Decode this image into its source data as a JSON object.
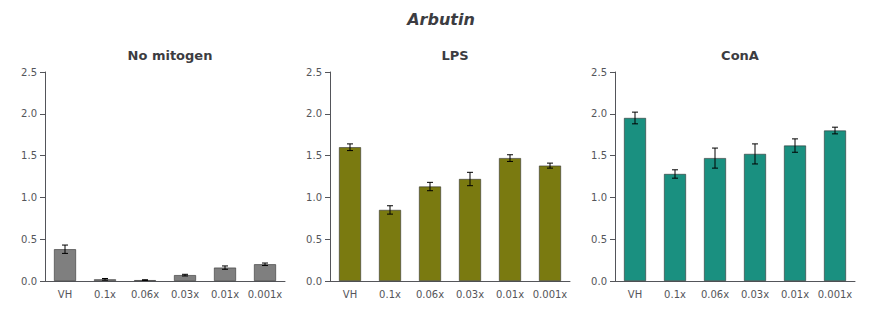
{
  "title": "Arbutin",
  "chart_data": [
    {
      "type": "bar",
      "title": "No mitogen",
      "color": "#7F7F7F",
      "categories": [
        "VH",
        "0.1x",
        "0.06x",
        "0.03x",
        "0.01x",
        "0.001x"
      ],
      "values": [
        0.38,
        0.02,
        0.01,
        0.07,
        0.16,
        0.2
      ],
      "errors": [
        0.05,
        0.01,
        0.005,
        0.01,
        0.02,
        0.015
      ],
      "ylim": [
        0,
        2.5
      ],
      "yticks": [
        {
          "value": 0.0,
          "label": "0.0"
        },
        0.5,
        {
          "value": 1.0,
          "label": "1.0"
        },
        1.5,
        {
          "value": 2.0,
          "label": "2.0"
        },
        2.5
      ],
      "grid": false
    },
    {
      "type": "bar",
      "title": "LPS",
      "color": "#7A7A10",
      "categories": [
        "VH",
        "0.1x",
        "0.06x",
        "0.03x",
        "0.01x",
        "0.001x"
      ],
      "values": [
        1.6,
        0.85,
        1.13,
        1.22,
        1.47,
        1.38
      ],
      "errors": [
        0.04,
        0.05,
        0.05,
        0.08,
        0.04,
        0.03
      ],
      "ylim": [
        0,
        2.5
      ],
      "yticks": [
        {
          "value": 0.0,
          "label": "0.0"
        },
        0.5,
        {
          "value": 1.0,
          "label": "1.0"
        },
        1.5,
        {
          "value": 2.0,
          "label": "2.0"
        },
        2.5
      ],
      "grid": false
    },
    {
      "type": "bar",
      "title": "ConA",
      "color": "#1A9080",
      "categories": [
        "VH",
        "0.1x",
        "0.06x",
        "0.03x",
        "0.01x",
        "0.001x"
      ],
      "values": [
        1.95,
        1.28,
        1.47,
        1.52,
        1.62,
        1.8
      ],
      "errors": [
        0.07,
        0.05,
        0.12,
        0.12,
        0.08,
        0.04
      ],
      "ylim": [
        0,
        2.5
      ],
      "yticks": [
        {
          "value": 0.0,
          "label": "0.0"
        },
        0.5,
        {
          "value": 1.0,
          "label": "1.0"
        },
        1.5,
        {
          "value": 2.0,
          "label": "2.0"
        },
        2.5
      ],
      "grid": false
    }
  ]
}
